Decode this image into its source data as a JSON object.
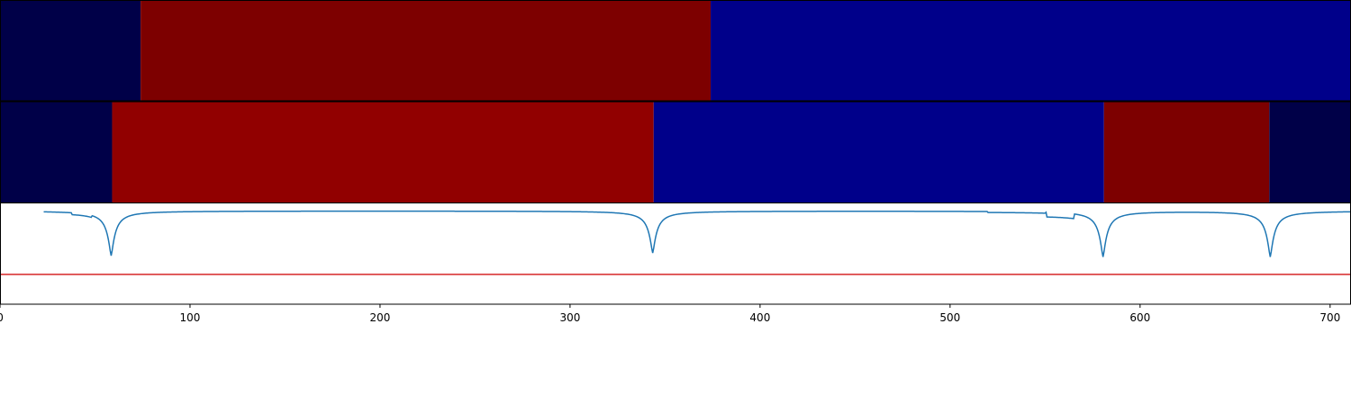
{
  "chart_data": {
    "type": "heatmap",
    "title": "",
    "xlabel": "",
    "ylabel": "",
    "xlim": [
      0,
      711
    ],
    "x_ticks": [
      0,
      100,
      200,
      300,
      400,
      500,
      600,
      700
    ],
    "x_tick_labels": [
      "0",
      "100",
      "200",
      "300",
      "400",
      "500",
      "600",
      "700"
    ],
    "segment_tracks": [
      {
        "segments": [
          {
            "start": 0,
            "end": 74,
            "color": "#000048"
          },
          {
            "start": 74,
            "end": 374,
            "color": "#7d0000"
          },
          {
            "start": 374,
            "end": 711,
            "color": "#00008a"
          }
        ]
      },
      {
        "segments": [
          {
            "start": 0,
            "end": 59,
            "color": "#000048"
          },
          {
            "start": 59,
            "end": 344,
            "color": "#910000"
          },
          {
            "start": 344,
            "end": 581,
            "color": "#00008a"
          },
          {
            "start": 581,
            "end": 668,
            "color": "#7d0000"
          },
          {
            "start": 668,
            "end": 711,
            "color": "#000048"
          }
        ]
      }
    ],
    "signal": {
      "color": "#1f77b4",
      "ylim": [
        -1.0,
        0.08
      ],
      "baseline": 0.0,
      "visible_from_x": 23,
      "dips": [
        {
          "x": 58.5,
          "depth": -0.48
        },
        {
          "x": 343.5,
          "depth": -0.45
        },
        {
          "x": 580.5,
          "depth": -0.49
        },
        {
          "x": 668.5,
          "depth": -0.49
        }
      ],
      "shelves": [
        {
          "start": 38,
          "end": 48,
          "level": -0.02
        },
        {
          "start": 520,
          "end": 550,
          "level": -0.01
        },
        {
          "start": 551,
          "end": 565,
          "level": -0.05
        }
      ]
    },
    "threshold": {
      "value": -0.68,
      "color": "#d62728"
    }
  }
}
